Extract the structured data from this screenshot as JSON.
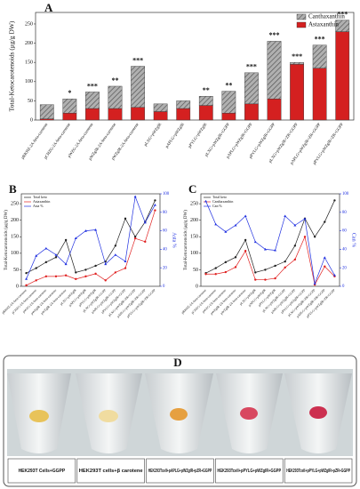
{
  "chart_data": [
    {
      "type": "bar",
      "panel": "A",
      "stacked": true,
      "ylabel": "Total-Ketocarotenoids (μg/g DW)",
      "legend": "upper right",
      "categories": [
        "pRKHZ-2A-beta-carotene",
        "pCHZG-2A-beta-carotene",
        "pWZG-2A-beta-carotene",
        "pWZgIR-2A-beta-carotene",
        "pWZglR-2A-beta-carotene",
        "pLXG+pWZglR",
        "pAPLG+pWZglR",
        "pPYLG+pWZglR",
        "pLXG+pWZglR+GGPP",
        "pAPLG+pWZglR+GGPP",
        "pPYLG+pWZglR+GGPP",
        "pLXG+pWZglR+ZR+GGPP",
        "pAPLG+pWZglR+ZR+GGPP",
        "pPYLG+pWZglR+ZR+GGPP"
      ],
      "series": [
        {
          "name": "Astaxanthin",
          "color": "#d42020",
          "values": [
            3,
            18,
            30,
            30,
            33,
            22,
            30,
            38,
            18,
            42,
            55,
            145,
            135,
            230
          ]
        },
        {
          "name": "Canthaxanthin",
          "color": "#9a9a9a",
          "hatch": true,
          "values": [
            37,
            37,
            43,
            58,
            107,
            20,
            20,
            24,
            57,
            81,
            150,
            5,
            60,
            30
          ]
        }
      ],
      "annotations": [
        {
          "index": 1,
          "text": "*"
        },
        {
          "index": 2,
          "text": "***"
        },
        {
          "index": 3,
          "text": "**"
        },
        {
          "index": 4,
          "text": "***"
        },
        {
          "index": 7,
          "text": "**"
        },
        {
          "index": 8,
          "text": "**"
        },
        {
          "index": 9,
          "text": "***"
        },
        {
          "index": 10,
          "text": "***"
        },
        {
          "index": 11,
          "text": "***"
        },
        {
          "index": 12,
          "text": "***"
        },
        {
          "index": 13,
          "text": "***"
        }
      ],
      "ylim": [
        0,
        280
      ],
      "yticks": [
        0,
        50,
        100,
        150,
        200,
        250
      ]
    },
    {
      "type": "line",
      "panel": "B",
      "ylabel": "Total-Ketocarotenoids (μg/g DW)",
      "y2label": "Asta %",
      "legend": "upper left",
      "categories": [
        "pRKHZ-2A-beta-carotene",
        "pCHZG-2A-beta-carotene",
        "pWZG-2A-beta-carotene",
        "pWZgIR-2A-beta-carotene",
        "pWZglR-2A-beta-carotene",
        "pLXG+pWZglR",
        "pAPLG+pWZglR",
        "pPYLG+pWZglR",
        "pLXG+pWZglR+GGPP",
        "pAPLG+pWZglR+GGPP",
        "pPYLG+pWZglR+GGPP",
        "pLXG+pWZglR+ZR+GGPP",
        "pAPLG+pWZglR+ZR+GGPP",
        "pPYLG+pWZglR+ZR+GGPP"
      ],
      "series": [
        {
          "name": "Total keto",
          "color": "#222222",
          "values": [
            40,
            55,
            73,
            88,
            140,
            42,
            50,
            62,
            75,
            123,
            205,
            150,
            195,
            260
          ]
        },
        {
          "name": "Astaxanthin",
          "color": "#e02020",
          "values": [
            3,
            18,
            30,
            30,
            33,
            22,
            30,
            38,
            18,
            42,
            55,
            145,
            135,
            230
          ]
        },
        {
          "name": "Asta %",
          "color": "#2030e0",
          "axis": "y2",
          "values": [
            8,
            33,
            41,
            34,
            24,
            52,
            60,
            61,
            24,
            34,
            27,
            97,
            69,
            88
          ]
        }
      ],
      "ylim": [
        0,
        280
      ],
      "yticks": [
        0,
        50,
        100,
        150,
        200,
        250
      ],
      "y2lim": [
        0,
        100
      ],
      "y2ticks": [
        0,
        20,
        40,
        60,
        80,
        100
      ]
    },
    {
      "type": "line",
      "panel": "C",
      "ylabel": "Total-Ketocarotenoids (μg/g DW)",
      "y2label": "Can %",
      "legend": "upper left",
      "categories": [
        "pRKHZ-2A-beta-carotene",
        "pCHZG-2A-beta-carotene",
        "pWZG-2A-beta-carotene",
        "pWZgIR-2A-beta-carotene",
        "pWZglR-2A-beta-carotene",
        "pLXG+pWZglR",
        "pAPLG+pWZglR",
        "pPYLG+pWZglR",
        "pLXG+pWZglR+GGPP",
        "pAPLG+pWZglR+GGPP",
        "pPYLG+pWZglR+GGPP",
        "pLXG+pWZglR+ZR+GGPP",
        "pAPLG+pWZglR+ZR+GGPP",
        "pPYLG+pWZglR+ZR+GGPP"
      ],
      "series": [
        {
          "name": "Total keto",
          "color": "#222222",
          "values": [
            40,
            55,
            73,
            88,
            140,
            42,
            50,
            62,
            75,
            123,
            205,
            150,
            195,
            260
          ]
        },
        {
          "name": "Canthaxanthin",
          "color": "#e02020",
          "values": [
            37,
            37,
            43,
            58,
            107,
            20,
            20,
            24,
            57,
            81,
            150,
            5,
            60,
            30
          ]
        },
        {
          "name": "Can %",
          "color": "#2030e0",
          "axis": "y2",
          "values": [
            92,
            67,
            59,
            66,
            76,
            48,
            40,
            39,
            76,
            66,
            73,
            3,
            31,
            12
          ]
        }
      ],
      "ylim": [
        0,
        280
      ],
      "yticks": [
        0,
        50,
        100,
        150,
        200,
        250
      ],
      "y2lim": [
        0,
        100
      ],
      "y2ticks": [
        0,
        20,
        40,
        60,
        80,
        100
      ]
    }
  ],
  "panel_d": {
    "label": "D",
    "captions": [
      "HEK293T Cells+GGPP",
      "HEK293T cells+β carotene",
      "HEK293Tcell+pAPLG+pWZglR+pZR+GGPP",
      "HEK293Tcell+pPYLG+pWZglR+GGPP",
      "HEK293Tcell+pPYLG+pWZglR+pZR+GGPP"
    ]
  }
}
